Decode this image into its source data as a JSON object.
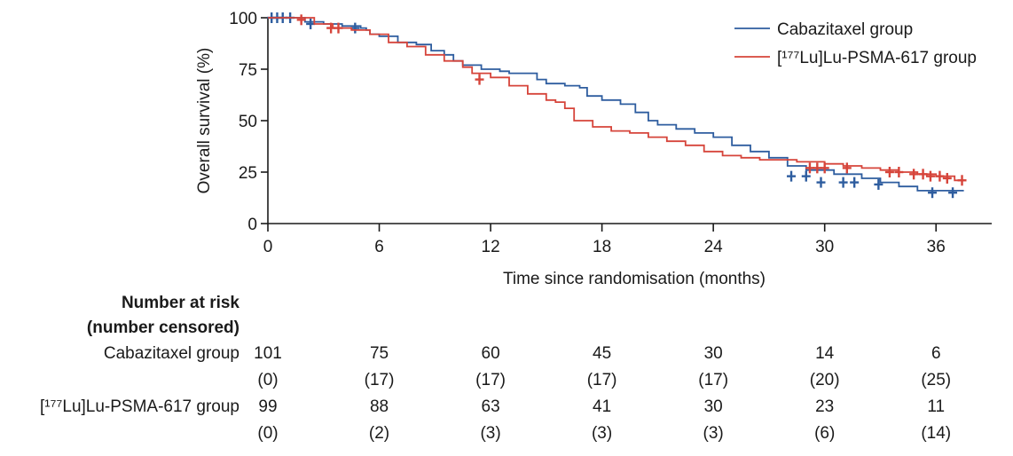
{
  "chart_data": {
    "type": "line",
    "title": "",
    "xlabel": "Time since randomisation (months)",
    "ylabel": "Overall survival (%)",
    "xlim": [
      0,
      39
    ],
    "ylim": [
      0,
      100
    ],
    "xticks": [
      0,
      6,
      12,
      18,
      24,
      30,
      36
    ],
    "yticks": [
      0,
      25,
      50,
      75,
      100
    ],
    "grid": false,
    "legend_position": "top-right",
    "series": [
      {
        "name": "Cabazitaxel group",
        "color": "#2e5d9f",
        "points": [
          [
            0,
            100
          ],
          [
            1.8,
            100
          ],
          [
            2,
            98
          ],
          [
            3,
            97
          ],
          [
            4,
            96
          ],
          [
            5,
            95
          ],
          [
            5.3,
            94
          ],
          [
            5.5,
            92
          ],
          [
            6,
            91
          ],
          [
            7,
            88
          ],
          [
            8,
            87
          ],
          [
            8.8,
            84
          ],
          [
            9.5,
            82
          ],
          [
            10,
            79
          ],
          [
            10.5,
            77
          ],
          [
            11.5,
            75
          ],
          [
            12.5,
            74
          ],
          [
            13,
            73
          ],
          [
            14.5,
            70
          ],
          [
            15,
            68
          ],
          [
            16,
            67
          ],
          [
            16.8,
            66
          ],
          [
            17.2,
            62
          ],
          [
            18,
            60
          ],
          [
            19,
            58
          ],
          [
            19.8,
            54
          ],
          [
            20.5,
            50
          ],
          [
            21,
            48
          ],
          [
            22,
            46
          ],
          [
            23,
            44
          ],
          [
            24,
            42
          ],
          [
            25,
            38
          ],
          [
            26,
            35
          ],
          [
            27,
            32
          ],
          [
            28,
            28
          ],
          [
            29,
            26
          ],
          [
            30.5,
            24
          ],
          [
            32,
            22
          ],
          [
            33,
            20
          ],
          [
            34,
            18
          ],
          [
            35,
            16
          ],
          [
            37.5,
            16
          ]
        ],
        "censored": [
          [
            0.2,
            100
          ],
          [
            0.5,
            100
          ],
          [
            0.8,
            100
          ],
          [
            1.2,
            100
          ],
          [
            2.3,
            97
          ],
          [
            4.7,
            95
          ],
          [
            28.2,
            23
          ],
          [
            29,
            23
          ],
          [
            29.8,
            20
          ],
          [
            31,
            20
          ],
          [
            31.6,
            20
          ],
          [
            32.9,
            19
          ],
          [
            35.8,
            15
          ],
          [
            36.9,
            15
          ]
        ]
      },
      {
        "name": "[¹⁷⁷Lu]Lu-PSMA-617 group",
        "color": "#d6443a",
        "points": [
          [
            0,
            100
          ],
          [
            2,
            100
          ],
          [
            2.5,
            97
          ],
          [
            3.5,
            95
          ],
          [
            4.5,
            94
          ],
          [
            5.5,
            92
          ],
          [
            6.5,
            88
          ],
          [
            7.5,
            86
          ],
          [
            8.5,
            82
          ],
          [
            9.5,
            79
          ],
          [
            10.5,
            76
          ],
          [
            11,
            73
          ],
          [
            12,
            71
          ],
          [
            13,
            67
          ],
          [
            14,
            63
          ],
          [
            15,
            60
          ],
          [
            15.5,
            59
          ],
          [
            16,
            56
          ],
          [
            16.5,
            50
          ],
          [
            17.5,
            47
          ],
          [
            18.5,
            45
          ],
          [
            19.5,
            44
          ],
          [
            20.5,
            42
          ],
          [
            21.5,
            40
          ],
          [
            22.5,
            38
          ],
          [
            23.5,
            35
          ],
          [
            24.5,
            33
          ],
          [
            25.5,
            32
          ],
          [
            26.5,
            31
          ],
          [
            27.5,
            31
          ],
          [
            28.5,
            30
          ],
          [
            30,
            29
          ],
          [
            31,
            28
          ],
          [
            32,
            27
          ],
          [
            33,
            26
          ],
          [
            34,
            25
          ],
          [
            35,
            24
          ],
          [
            36,
            23
          ],
          [
            37,
            21
          ],
          [
            37.5,
            21
          ]
        ],
        "censored": [
          [
            1.8,
            99
          ],
          [
            3.4,
            95
          ],
          [
            3.8,
            95
          ],
          [
            11.4,
            70
          ],
          [
            29.2,
            27
          ],
          [
            29.6,
            27
          ],
          [
            30,
            27
          ],
          [
            31.2,
            27
          ],
          [
            33.5,
            25
          ],
          [
            34,
            25
          ],
          [
            34.8,
            24
          ],
          [
            35.3,
            24
          ],
          [
            35.7,
            23
          ],
          [
            36.2,
            23
          ],
          [
            36.6,
            22
          ],
          [
            37.4,
            21
          ]
        ]
      }
    ]
  },
  "risk_table": {
    "heading_line1": "Number at risk",
    "heading_line2": "(number censored)",
    "groups": [
      {
        "label": "Cabazitaxel group",
        "at_risk": [
          "101",
          "75",
          "60",
          "45",
          "30",
          "14",
          "6"
        ],
        "censored": [
          "(0)",
          "(17)",
          "(17)",
          "(17)",
          "(17)",
          "(20)",
          "(25)"
        ]
      },
      {
        "label": "[¹⁷⁷Lu]Lu-PSMA-617 group",
        "at_risk": [
          "99",
          "88",
          "63",
          "41",
          "30",
          "23",
          "11"
        ],
        "censored": [
          "(0)",
          "(2)",
          "(3)",
          "(3)",
          "(3)",
          "(6)",
          "(14)"
        ]
      }
    ]
  }
}
